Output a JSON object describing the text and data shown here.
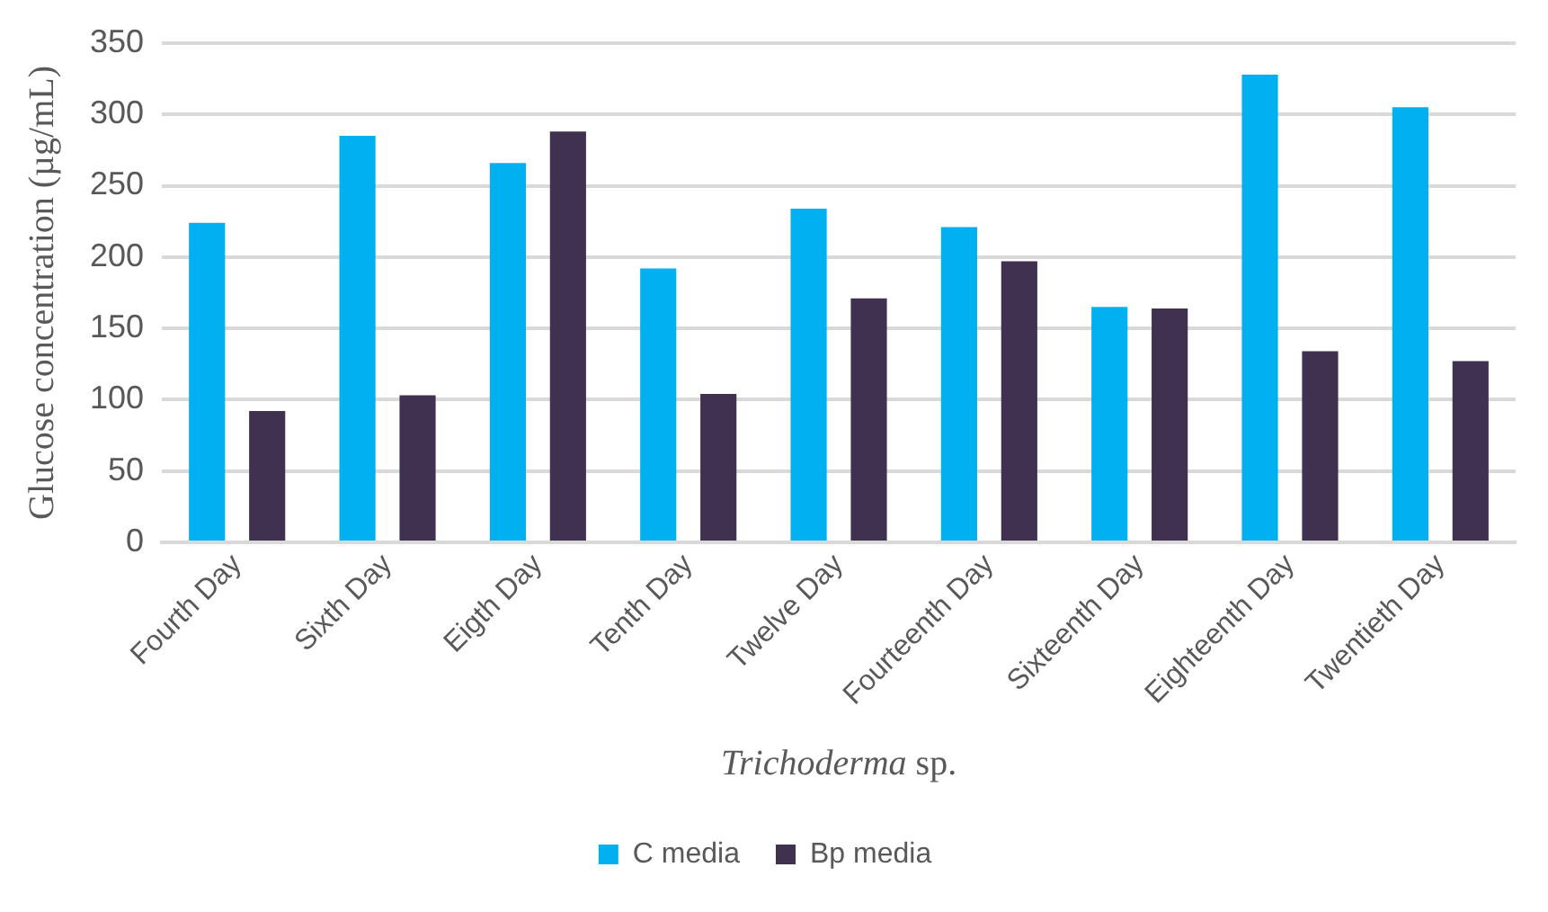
{
  "chart_data": {
    "type": "bar",
    "xlabel": "Trichoderma sp.",
    "ylabel": "Glucose concentration (µg/mL)",
    "categories": [
      "Fourth Day",
      "Sixth Day",
      "Eigth Day",
      "Tenth Day",
      "Twelve Day",
      "Fourteenth Day",
      "Sixteenth Day",
      "Eighteenth Day",
      "Twentieth Day"
    ],
    "series": [
      {
        "name": "C media",
        "color": "#00b0f0",
        "values": [
          224,
          285,
          266,
          192,
          234,
          221,
          165,
          328,
          305
        ]
      },
      {
        "name": "Bp media",
        "color": "#403151",
        "values": [
          92,
          103,
          288,
          104,
          171,
          197,
          164,
          134,
          127
        ]
      }
    ],
    "ylim": [
      0,
      350
    ],
    "yticks": [
      0,
      50,
      100,
      150,
      200,
      250,
      300,
      350
    ],
    "grid": "y",
    "legend": "bottom"
  }
}
